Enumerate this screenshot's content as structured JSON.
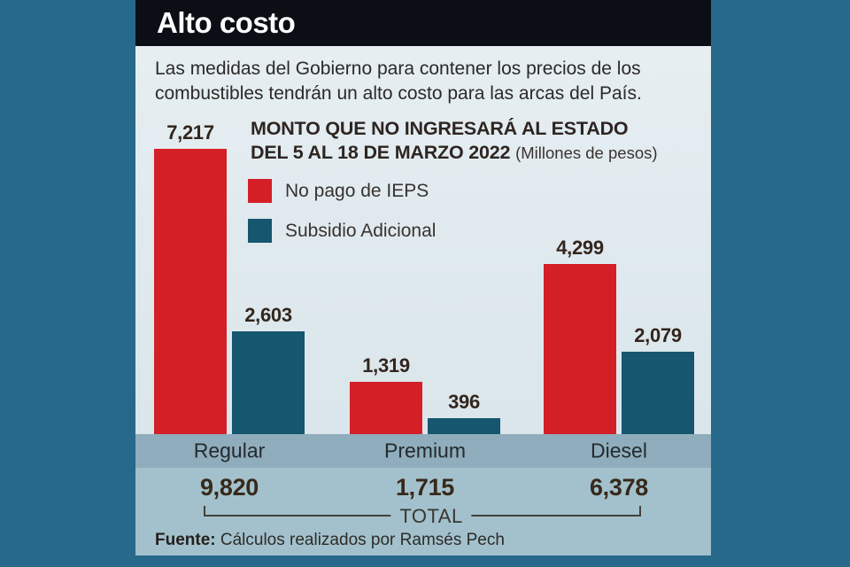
{
  "header": {
    "title": "Alto costo"
  },
  "subtitle": {
    "line1": "Las medidas del Gobierno para contener los precios de los",
    "line2": "combustibles tendrán un alto costo para las arcas del País."
  },
  "chart_data": {
    "type": "bar",
    "title_line1": "MONTO QUE NO INGRESARÁ AL ESTADO",
    "title_line2": "DEL 5 AL 18 DE MARZO 2022",
    "units": "(Millones de pesos)",
    "categories": [
      "Regular",
      "Premium",
      "Diesel"
    ],
    "series": [
      {
        "name": "No pago de IEPS",
        "color": "#d41f26",
        "values": [
          7217,
          1319,
          4299
        ]
      },
      {
        "name": "Subsidio Adicional",
        "color": "#16566e",
        "values": [
          2603,
          396,
          2079
        ]
      }
    ],
    "totals": [
      9820,
      1715,
      6378
    ],
    "total_label": "TOTAL",
    "ylim": [
      0,
      7500
    ],
    "grid": false,
    "legend_position": "top-left-of-plot",
    "value_labels": true
  },
  "footer": {
    "source_label": "Fuente:",
    "source_text": " Cálculos realizados por Ramsés Pech"
  },
  "colors": {
    "outer_background": "#26698b",
    "header_background": "#0b0e14",
    "card_background": "#dde8ed",
    "category_band": "#8fadbc",
    "bottom_band": "#a2c1cc",
    "series_red": "#d41f26",
    "series_teal": "#16566e",
    "dark_text": "#2e2521"
  }
}
